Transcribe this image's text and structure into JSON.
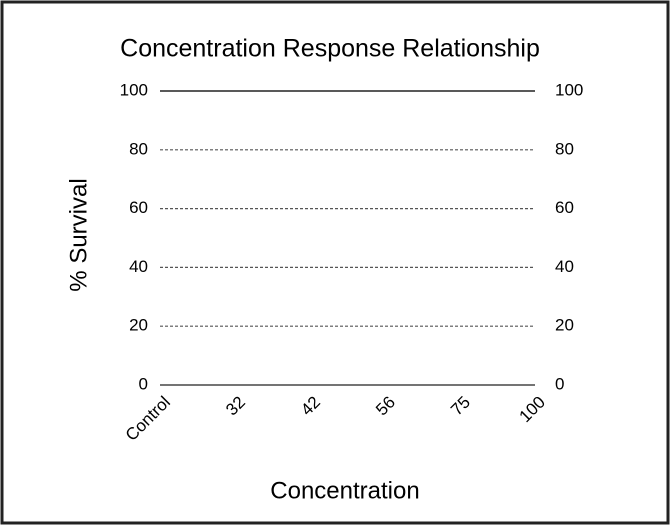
{
  "chart_data": {
    "type": "bar",
    "title": "Concentration Response Relationship",
    "x_label": "Concentration",
    "y_label": "% Survival",
    "categories": [
      "Control",
      "32",
      "42",
      "56",
      "75",
      "100"
    ],
    "ylim": [
      0,
      100
    ],
    "yticks": [
      0,
      20,
      40,
      60,
      80,
      100
    ],
    "y2lim": [
      0,
      100
    ],
    "y2ticks": [
      0,
      20,
      40,
      60,
      80,
      100
    ],
    "grid": true
  }
}
